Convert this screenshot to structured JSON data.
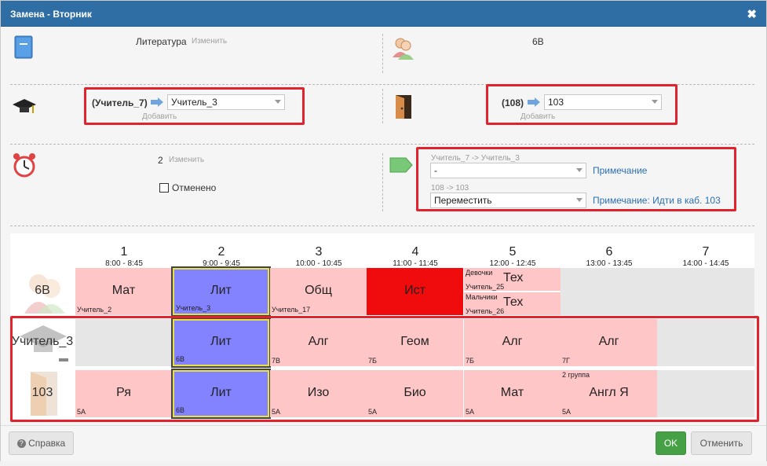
{
  "window": {
    "title": "Замена - Вторник"
  },
  "subject": {
    "name": "Литература",
    "change_link": "Изменить"
  },
  "class_name": "6В",
  "teacher": {
    "old": "(Учитель_7)",
    "selected": "Учитель_3",
    "add_link": "Добавить"
  },
  "room": {
    "old": "(108)",
    "selected": "103",
    "add_link": "Добавить"
  },
  "lesson": {
    "number": "2",
    "change_link": "Изменить",
    "cancelled_label": "Отменено"
  },
  "notes": {
    "teacher_change": "Учитель_7 -> Учитель_3",
    "teacher_select": "-",
    "teacher_note_link": "Примечание",
    "room_change": "108 -> 103",
    "room_select": "Переместить",
    "room_note_link": "Примечание: Идти в каб. 103"
  },
  "schedule": {
    "columns": [
      {
        "num": "1",
        "time": "8:00 - 8:45"
      },
      {
        "num": "2",
        "time": "9:00 - 9:45"
      },
      {
        "num": "3",
        "time": "10:00 - 10:45"
      },
      {
        "num": "4",
        "time": "11:00 - 11:45"
      },
      {
        "num": "5",
        "time": "12:00 - 12:45"
      },
      {
        "num": "6",
        "time": "13:00 - 13:45"
      },
      {
        "num": "7",
        "time": "14:00 - 14:45"
      }
    ],
    "row_class": {
      "label": "6В",
      "cells": [
        {
          "subject": "Мат",
          "sub": "Учитель_2"
        },
        {
          "subject": "Лит",
          "sub": "Учитель_3"
        },
        {
          "subject": "Общ",
          "sub": "Учитель_17"
        },
        {
          "subject": "Ист",
          "sub": ""
        },
        {
          "split": [
            {
              "group": "Девочки",
              "subject": "Тех",
              "sub": "Учитель_25"
            },
            {
              "group": "Мальчики",
              "subject": "Тех",
              "sub": "Учитель_26"
            }
          ]
        },
        {
          "subject": "",
          "sub": ""
        },
        {
          "subject": "",
          "sub": ""
        }
      ]
    },
    "row_teacher": {
      "label": "Учитель_3",
      "cells": [
        {
          "subject": "",
          "sub": ""
        },
        {
          "subject": "Лит",
          "sub": "6В"
        },
        {
          "subject": "Алг",
          "sub": "7В"
        },
        {
          "subject": "Геом",
          "sub": "7Б"
        },
        {
          "subject": "Алг",
          "sub": "7Б"
        },
        {
          "subject": "Алг",
          "sub": "7Г"
        },
        {
          "subject": "",
          "sub": ""
        }
      ]
    },
    "row_room": {
      "label": "103",
      "cells": [
        {
          "subject": "Ря",
          "sub": "5А"
        },
        {
          "subject": "Лит",
          "sub": "6В"
        },
        {
          "subject": "Изо",
          "sub": "5А"
        },
        {
          "subject": "Био",
          "sub": "5А"
        },
        {
          "subject": "Мат",
          "sub": "5А"
        },
        {
          "subject": "Англ Я",
          "sub": "5А",
          "top": "2 группа"
        },
        {
          "subject": "",
          "sub": ""
        }
      ]
    }
  },
  "footer": {
    "help": "Справка",
    "ok": "OK",
    "cancel": "Отменить"
  },
  "colors": {
    "accent": "#2f6ea5",
    "highlight": "#e0232d",
    "selected_cell": "#8383ff",
    "conflict_cell": "#f00c0c",
    "busy_cell": "#ffc6c8"
  }
}
